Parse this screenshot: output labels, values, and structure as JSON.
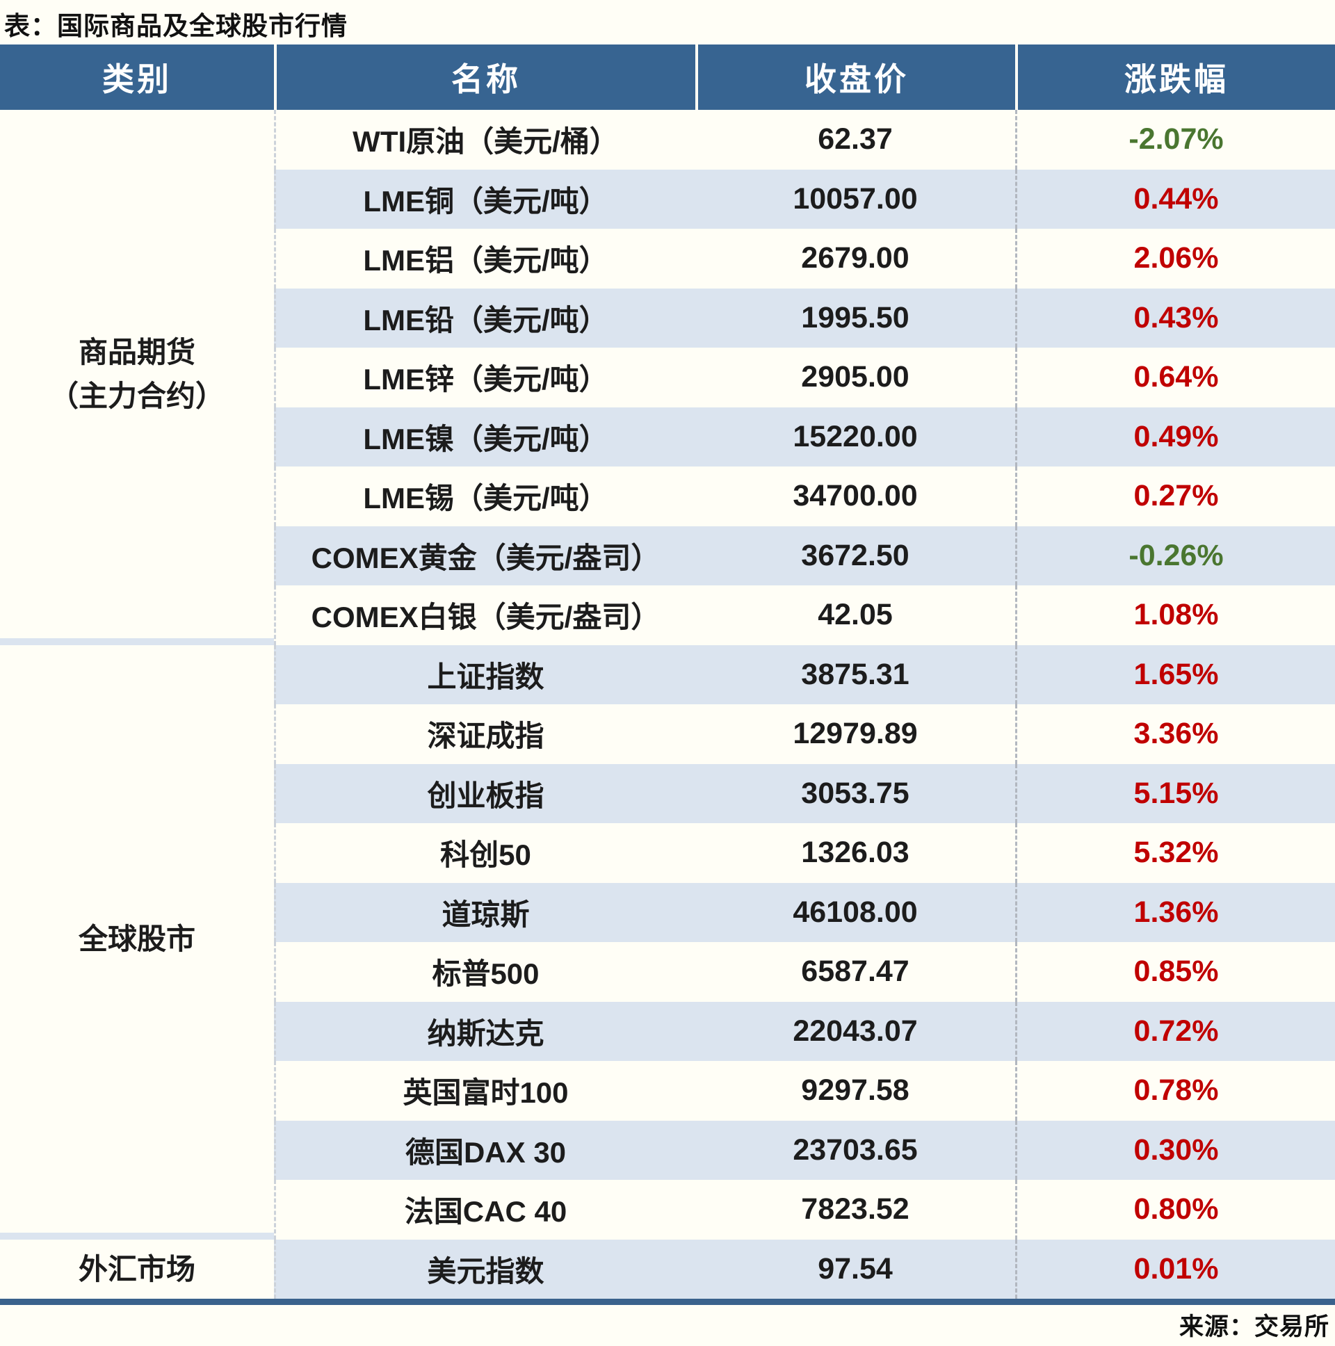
{
  "title": "表：国际商品及全球股市行情",
  "source": "来源：交易所",
  "table": {
    "columns": [
      "类别",
      "名称",
      "收盘价",
      "涨跌幅"
    ],
    "sections": [
      {
        "category_lines": [
          "商品期货",
          "（主力合约）"
        ],
        "rows": [
          {
            "name": "WTI原油（美元/桶）",
            "close": "62.37",
            "change": "-2.07%"
          },
          {
            "name": "LME铜（美元/吨）",
            "close": "10057.00",
            "change": "0.44%"
          },
          {
            "name": "LME铝（美元/吨）",
            "close": "2679.00",
            "change": "2.06%"
          },
          {
            "name": "LME铅（美元/吨）",
            "close": "1995.50",
            "change": "0.43%"
          },
          {
            "name": "LME锌（美元/吨）",
            "close": "2905.00",
            "change": "0.64%"
          },
          {
            "name": "LME镍（美元/吨）",
            "close": "15220.00",
            "change": "0.49%"
          },
          {
            "name": "LME锡（美元/吨）",
            "close": "34700.00",
            "change": "0.27%"
          },
          {
            "name": "COMEX黄金（美元/盎司）",
            "close": "3672.50",
            "change": "-0.26%"
          },
          {
            "name": "COMEX白银（美元/盎司）",
            "close": "42.05",
            "change": "1.08%"
          }
        ]
      },
      {
        "category_lines": [
          "全球股市"
        ],
        "rows": [
          {
            "name": "上证指数",
            "close": "3875.31",
            "change": "1.65%"
          },
          {
            "name": "深证成指",
            "close": "12979.89",
            "change": "3.36%"
          },
          {
            "name": "创业板指",
            "close": "3053.75",
            "change": "5.15%"
          },
          {
            "name": "科创50",
            "close": "1326.03",
            "change": "5.32%"
          },
          {
            "name": "道琼斯",
            "close": "46108.00",
            "change": "1.36%"
          },
          {
            "name": "标普500",
            "close": "6587.47",
            "change": "0.85%"
          },
          {
            "name": "纳斯达克",
            "close": "22043.07",
            "change": "0.72%"
          },
          {
            "name": "英国富时100",
            "close": "9297.58",
            "change": "0.78%"
          },
          {
            "name": "德国DAX 30",
            "close": "23703.65",
            "change": "0.30%"
          },
          {
            "name": "法国CAC 40",
            "close": "7823.52",
            "change": "0.80%"
          }
        ]
      },
      {
        "category_lines": [
          "外汇市场"
        ],
        "rows": [
          {
            "name": "美元指数",
            "close": "97.54",
            "change": "0.01%"
          }
        ]
      }
    ]
  },
  "colors": {
    "header_background": "#376491",
    "alt_row_background": "#dbe4ef",
    "page_background": "#fffef6",
    "positive_change": "#c00000",
    "negative_change": "#4a7630",
    "bottom_rule": "#3a628c"
  },
  "chart_data": {
    "type": "table",
    "title": "表：国际商品及全球股市行情",
    "columns": [
      "类别",
      "名称",
      "收盘价",
      "涨跌幅"
    ],
    "rows": [
      [
        "商品期货（主力合约）",
        "WTI原油（美元/桶）",
        62.37,
        -2.07
      ],
      [
        "商品期货（主力合约）",
        "LME铜（美元/吨）",
        10057.0,
        0.44
      ],
      [
        "商品期货（主力合约）",
        "LME铝（美元/吨）",
        2679.0,
        2.06
      ],
      [
        "商品期货（主力合约）",
        "LME铅（美元/吨）",
        1995.5,
        0.43
      ],
      [
        "商品期货（主力合约）",
        "LME锌（美元/吨）",
        2905.0,
        0.64
      ],
      [
        "商品期货（主力合约）",
        "LME镍（美元/吨）",
        15220.0,
        0.49
      ],
      [
        "商品期货（主力合约）",
        "LME锡（美元/吨）",
        34700.0,
        0.27
      ],
      [
        "商品期货（主力合约）",
        "COMEX黄金（美元/盎司）",
        3672.5,
        -0.26
      ],
      [
        "商品期货（主力合约）",
        "COMEX白银（美元/盎司）",
        42.05,
        1.08
      ],
      [
        "全球股市",
        "上证指数",
        3875.31,
        1.65
      ],
      [
        "全球股市",
        "深证成指",
        12979.89,
        3.36
      ],
      [
        "全球股市",
        "创业板指",
        3053.75,
        5.15
      ],
      [
        "全球股市",
        "科创50",
        1326.03,
        5.32
      ],
      [
        "全球股市",
        "道琼斯",
        46108.0,
        1.36
      ],
      [
        "全球股市",
        "标普500",
        6587.47,
        0.85
      ],
      [
        "全球股市",
        "纳斯达克",
        22043.07,
        0.72
      ],
      [
        "全球股市",
        "英国富时100",
        9297.58,
        0.78
      ],
      [
        "全球股市",
        "德国DAX 30",
        23703.65,
        0.3
      ],
      [
        "全球股市",
        "法国CAC 40",
        7823.52,
        0.8
      ],
      [
        "外汇市场",
        "美元指数",
        97.54,
        0.01
      ]
    ],
    "change_units": "%",
    "source": "来源：交易所"
  }
}
